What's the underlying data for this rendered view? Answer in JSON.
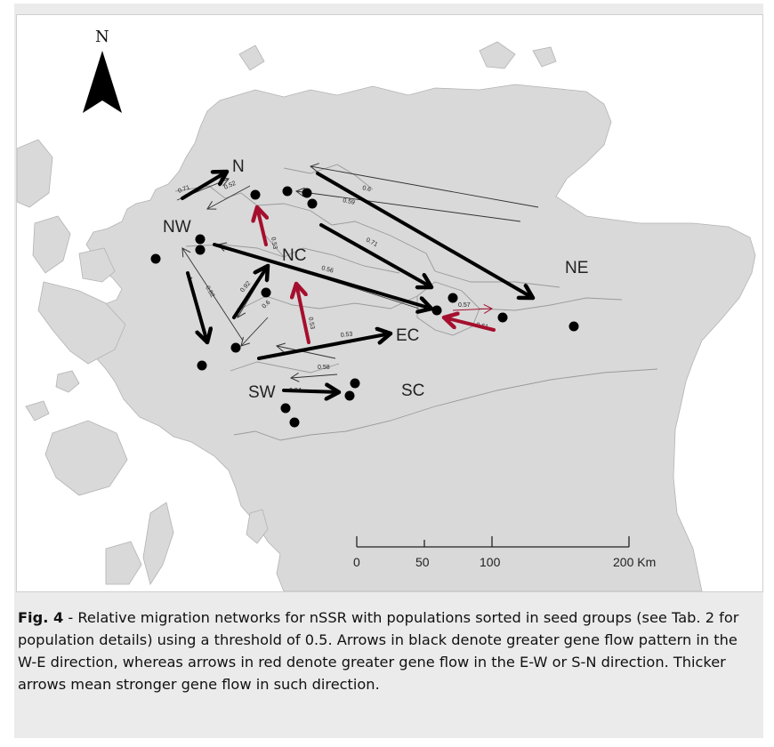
{
  "figure": {
    "caption_label": "Fig. 4",
    "caption_text": " - Relative migration networks for nSSR with populations sorted in seed groups (see Tab. 2 for population details) using a threshold of 0.5. Arrows in black denote greater gene flow pattern in the W-E direction, whereas arrows in red denote greater gene flow in the E-W or S-N direction. Thicker arrows mean stronger gene flow in such direction."
  },
  "map": {
    "north_label": "N",
    "region_labels": {
      "N": "N",
      "NW": "NW",
      "NC": "NC",
      "NE": "NE",
      "EC": "EC",
      "SW": "SW",
      "SC": "SC"
    },
    "weights": {
      "w071": "0.71",
      "w052": "0.52",
      "w053a": "0.53",
      "w06a": "0.6",
      "w059": "0.59",
      "w071b": "0.71",
      "w056": "0.56",
      "w092": "0.92",
      "w1": "1",
      "w082": "0.82",
      "w06b": "0.6",
      "w053b": "0.53",
      "w053c": "0.53",
      "w057": "0.57",
      "w061": "0.61",
      "w058": "0.58",
      "w094": "0.94"
    },
    "scale_bar": {
      "ticks": [
        "0",
        "50",
        "100",
        "200 Km"
      ]
    },
    "colors": {
      "land": "#d9d9d9",
      "land_stroke": "#b3b3b3",
      "border": "#9a9a9a",
      "black_arrow": "#000000",
      "red_arrow": "#a50f2d"
    }
  }
}
